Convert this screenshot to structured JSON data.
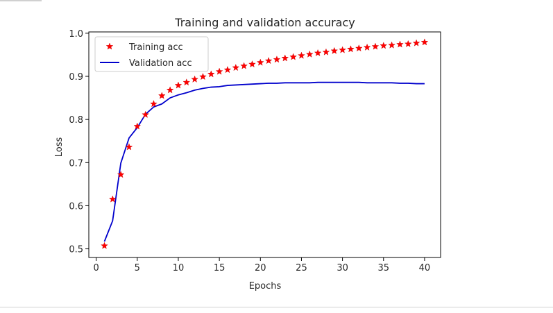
{
  "chart_data": {
    "type": "line",
    "title": "Training and validation accuracy",
    "xlabel": "Epochs",
    "ylabel": "Loss",
    "xlim": [
      -0.9,
      41.95
    ],
    "ylim": [
      0.48,
      1.003
    ],
    "xticks": [
      0,
      5,
      10,
      15,
      20,
      25,
      30,
      35,
      40
    ],
    "yticks": [
      0.5,
      0.6,
      0.7,
      0.8,
      0.9,
      1.0
    ],
    "xtick_labels": [
      "0",
      "5",
      "10",
      "15",
      "20",
      "25",
      "30",
      "35",
      "40"
    ],
    "ytick_labels": [
      "0.5",
      "0.6",
      "0.7",
      "0.8",
      "0.9",
      "1.0"
    ],
    "grid": false,
    "legend_position": "top-left",
    "x": [
      1,
      2,
      3,
      4,
      5,
      6,
      7,
      8,
      9,
      10,
      11,
      12,
      13,
      14,
      15,
      16,
      17,
      18,
      19,
      20,
      21,
      22,
      23,
      24,
      25,
      26,
      27,
      28,
      29,
      30,
      31,
      32,
      33,
      34,
      35,
      36,
      37,
      38,
      39,
      40
    ],
    "series": [
      {
        "name": "Training acc",
        "style": "markers-star",
        "color": "#ff0000",
        "values": [
          0.507,
          0.615,
          0.672,
          0.736,
          0.784,
          0.811,
          0.836,
          0.855,
          0.868,
          0.879,
          0.886,
          0.893,
          0.899,
          0.905,
          0.911,
          0.915,
          0.92,
          0.924,
          0.928,
          0.932,
          0.936,
          0.939,
          0.942,
          0.945,
          0.948,
          0.951,
          0.954,
          0.956,
          0.959,
          0.961,
          0.963,
          0.965,
          0.967,
          0.969,
          0.971,
          0.972,
          0.974,
          0.975,
          0.977,
          0.979
        ]
      },
      {
        "name": "Validation acc",
        "style": "line",
        "color": "#0000cc",
        "values": [
          0.517,
          0.565,
          0.699,
          0.757,
          0.781,
          0.812,
          0.829,
          0.836,
          0.85,
          0.857,
          0.862,
          0.868,
          0.872,
          0.875,
          0.876,
          0.879,
          0.88,
          0.881,
          0.882,
          0.883,
          0.884,
          0.884,
          0.885,
          0.885,
          0.885,
          0.885,
          0.886,
          0.886,
          0.886,
          0.886,
          0.886,
          0.886,
          0.885,
          0.885,
          0.885,
          0.885,
          0.884,
          0.884,
          0.883,
          0.883
        ]
      }
    ]
  }
}
